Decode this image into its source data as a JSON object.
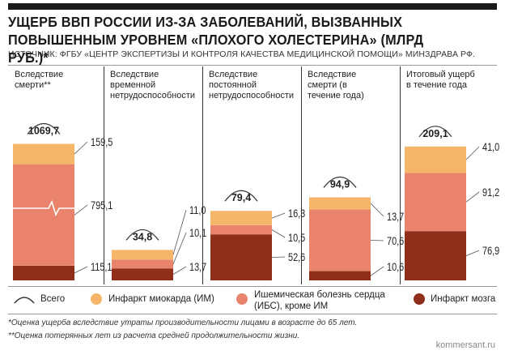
{
  "title": "УЩЕРБ ВВП РОССИИ ИЗ-ЗА ЗАБОЛЕВАНИЙ, ВЫЗВАННЫХ ПОВЫШЕННЫМ УРОВНЕМ «ПЛОХОГО ХОЛЕСТЕРИНА» (МЛРД РУБ.)*",
  "source": "ИСТОЧНИК: ФГБУ «ЦЕНТР ЭКСПЕРТИЗЫ И КОНТРОЛЯ КАЧЕСТВА МЕДИЦИНСКОЙ ПОМОЩИ» МИНЗДРАВА РФ.",
  "colors": {
    "mi": "#F6B66A",
    "ihd": "#E9836C",
    "stroke": "#8E2E1B",
    "text": "#222222"
  },
  "legend": {
    "total": "Всего",
    "mi": "Инфаркт миокарда (ИМ)",
    "ihd": "Ишемическая болезнь сердца\n(ИБС), кроме ИМ",
    "stroke": "Инфаркт мозга"
  },
  "notes": {
    "n1": "*Оценка ущерба вследствие утраты производительности лицами в возрасте до 65 лет.",
    "n2": "**Оценка потерянных лет из расчета средней продолжительности жизни."
  },
  "credit": "kommersant.ru",
  "chart_data": {
    "type": "bar",
    "stacked": true,
    "title": "Ущерб ВВП России из-за заболеваний, вызванных повышенным уровнем «плохого холестерина» (млрд руб.)",
    "unit": "млрд руб.",
    "categories": [
      "Вследствие смерти**",
      "Вследствие временной нетрудоспособности",
      "Вследствие постоянной нетрудоспособности",
      "Вследствие смерти (в течение года)",
      "Итоговый ущерб в течение года"
    ],
    "totals": [
      1069.7,
      34.8,
      79.4,
      94.9,
      209.1
    ],
    "total_labels": [
      "1069,7",
      "34,8",
      "79,4",
      "94,9",
      "209,1"
    ],
    "series": [
      {
        "name": "Инфаркт мозга",
        "key": "stroke",
        "values": [
          115.1,
          13.7,
          52.6,
          10.6,
          76.9
        ],
        "labels": [
          "115,1",
          "13,7",
          "52,6",
          "10,6",
          "76,9"
        ]
      },
      {
        "name": "Ишемическая болезнь сердца (ИБС), кроме ИМ",
        "key": "ihd",
        "values": [
          795.1,
          10.1,
          10.5,
          70.6,
          91.2
        ],
        "labels": [
          "795,1",
          "10,1",
          "10,5",
          "70,6",
          "91,2"
        ]
      },
      {
        "name": "Инфаркт миокарда (ИМ)",
        "key": "mi",
        "values": [
          159.5,
          11.0,
          16.3,
          13.7,
          41.0
        ],
        "labels": [
          "159,5",
          "11,0",
          "16,3",
          "13,7",
          "41,0"
        ]
      }
    ],
    "scale_note": "Первая колонка (1069,7) показана в сжатом масштабе (разрыв шкалы)"
  }
}
